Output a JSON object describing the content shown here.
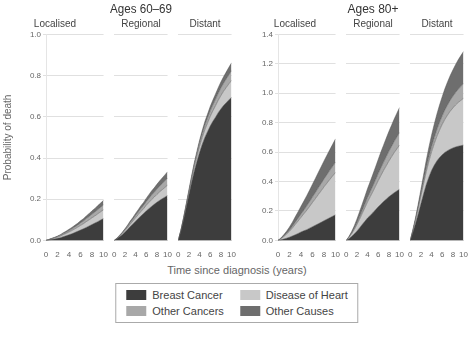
{
  "chart_data": [
    {
      "type": "area",
      "stacked": true,
      "subtitle": "Localised",
      "ylabel": "Probability of death",
      "xlabel": "Time since diagnosis (years)",
      "legend": "bottom",
      "x": [
        0,
        0.5,
        1,
        1.5,
        2,
        2.5,
        3,
        3.5,
        4,
        4.5,
        5,
        5.5,
        6,
        6.5,
        7,
        7.5,
        8,
        8.5,
        9,
        9.5,
        10
      ],
      "xlim": [
        0,
        10
      ],
      "xticks": [
        0,
        2,
        4,
        6,
        8,
        10
      ],
      "ylim": [
        0,
        1.0
      ],
      "yticks": [
        {
          "value": 0,
          "label": "0.0"
        },
        0.2,
        0.4,
        0.6,
        0.8,
        {
          "value": 1.0,
          "label": "1.0"
        }
      ],
      "grid": true,
      "series": [
        {
          "name": "Breast Cancer",
          "color": "#3d3d3d",
          "values": [
            0.0,
            0.002,
            0.005,
            0.007,
            0.01,
            0.013,
            0.018,
            0.022,
            0.027,
            0.032,
            0.038,
            0.044,
            0.05,
            0.056,
            0.063,
            0.07,
            0.077,
            0.084,
            0.091,
            0.099,
            0.106
          ]
        },
        {
          "name": "Disease of Heart",
          "color": "#c8c8c8",
          "values": [
            0.0,
            0.001,
            0.003,
            0.004,
            0.006,
            0.008,
            0.01,
            0.012,
            0.014,
            0.016,
            0.018,
            0.02,
            0.023,
            0.025,
            0.028,
            0.03,
            0.033,
            0.035,
            0.038,
            0.04,
            0.043
          ]
        },
        {
          "name": "Other Cancers",
          "color": "#a8a8a8",
          "values": [
            0.0,
            0.001,
            0.001,
            0.002,
            0.003,
            0.004,
            0.005,
            0.006,
            0.007,
            0.008,
            0.009,
            0.01,
            0.012,
            0.013,
            0.015,
            0.016,
            0.018,
            0.019,
            0.021,
            0.022,
            0.024
          ]
        },
        {
          "name": "Other Causes",
          "color": "#6e6e6e",
          "values": [
            0.0,
            0.001,
            0.001,
            0.002,
            0.002,
            0.003,
            0.004,
            0.005,
            0.006,
            0.007,
            0.008,
            0.009,
            0.01,
            0.011,
            0.013,
            0.014,
            0.016,
            0.017,
            0.019,
            0.02,
            0.022
          ]
        }
      ]
    },
    {
      "type": "area",
      "stacked": true,
      "title": "Ages 60–69",
      "subtitle": "Regional",
      "tick_labels": "x",
      "x": [
        0,
        0.5,
        1,
        1.5,
        2,
        2.5,
        3,
        3.5,
        4,
        4.5,
        5,
        5.5,
        6,
        6.5,
        7,
        7.5,
        8,
        8.5,
        9,
        9.5,
        10
      ],
      "xlim": [
        0,
        10
      ],
      "xticks": [
        0,
        2,
        4,
        6,
        8,
        10
      ],
      "ylim": [
        0,
        1.0
      ],
      "yticks": [
        {
          "value": 0,
          "label": "0.0"
        },
        0.2,
        0.4,
        0.6,
        0.8,
        {
          "value": 1.0,
          "label": "1.0"
        }
      ],
      "grid": true,
      "series": [
        {
          "name": "Breast Cancer",
          "color": "#3d3d3d",
          "values": [
            0.0,
            0.008,
            0.018,
            0.028,
            0.04,
            0.053,
            0.067,
            0.08,
            0.093,
            0.106,
            0.118,
            0.13,
            0.143,
            0.154,
            0.165,
            0.175,
            0.185,
            0.194,
            0.202,
            0.21,
            0.218
          ]
        },
        {
          "name": "Disease of Heart",
          "color": "#c8c8c8",
          "values": [
            0.0,
            0.001,
            0.003,
            0.005,
            0.007,
            0.009,
            0.012,
            0.014,
            0.017,
            0.019,
            0.022,
            0.024,
            0.027,
            0.03,
            0.033,
            0.035,
            0.038,
            0.041,
            0.044,
            0.047,
            0.05
          ]
        },
        {
          "name": "Other Cancers",
          "color": "#a8a8a8",
          "values": [
            0.0,
            0.001,
            0.002,
            0.003,
            0.005,
            0.006,
            0.008,
            0.009,
            0.011,
            0.013,
            0.015,
            0.016,
            0.018,
            0.02,
            0.022,
            0.024,
            0.026,
            0.028,
            0.03,
            0.032,
            0.034
          ]
        },
        {
          "name": "Other Causes",
          "color": "#6e6e6e",
          "values": [
            0.0,
            0.001,
            0.002,
            0.003,
            0.004,
            0.006,
            0.007,
            0.008,
            0.01,
            0.011,
            0.013,
            0.014,
            0.016,
            0.018,
            0.02,
            0.021,
            0.023,
            0.025,
            0.027,
            0.029,
            0.031
          ]
        }
      ]
    },
    {
      "type": "area",
      "stacked": true,
      "subtitle": "Distant",
      "tick_labels": "x",
      "x": [
        0,
        0.5,
        1,
        1.5,
        2,
        2.5,
        3,
        3.5,
        4,
        4.5,
        5,
        5.5,
        6,
        6.5,
        7,
        7.5,
        8,
        8.5,
        9,
        9.5,
        10
      ],
      "xlim": [
        0,
        10
      ],
      "xticks": [
        0,
        2,
        4,
        6,
        8,
        10
      ],
      "ylim": [
        0,
        1.0
      ],
      "yticks": [
        {
          "value": 0,
          "label": "0.0"
        },
        0.2,
        0.4,
        0.6,
        0.8,
        {
          "value": 1.0,
          "label": "1.0"
        }
      ],
      "grid": true,
      "series": [
        {
          "name": "Breast Cancer",
          "color": "#3d3d3d",
          "values": [
            0.0,
            0.045,
            0.1,
            0.16,
            0.22,
            0.28,
            0.335,
            0.383,
            0.427,
            0.466,
            0.5,
            0.528,
            0.555,
            0.578,
            0.598,
            0.62,
            0.638,
            0.655,
            0.668,
            0.682,
            0.695
          ]
        },
        {
          "name": "Disease of Heart",
          "color": "#c8c8c8",
          "values": [
            0.0,
            0.002,
            0.005,
            0.008,
            0.012,
            0.016,
            0.02,
            0.024,
            0.029,
            0.033,
            0.038,
            0.042,
            0.047,
            0.051,
            0.056,
            0.06,
            0.065,
            0.069,
            0.074,
            0.078,
            0.082
          ]
        },
        {
          "name": "Other Cancers",
          "color": "#a8a8a8",
          "values": [
            0.0,
            0.001,
            0.003,
            0.005,
            0.007,
            0.009,
            0.012,
            0.014,
            0.017,
            0.019,
            0.022,
            0.024,
            0.027,
            0.029,
            0.032,
            0.034,
            0.037,
            0.039,
            0.042,
            0.044,
            0.047
          ]
        },
        {
          "name": "Other Causes",
          "color": "#6e6e6e",
          "values": [
            0.0,
            0.001,
            0.002,
            0.004,
            0.005,
            0.007,
            0.009,
            0.011,
            0.013,
            0.015,
            0.017,
            0.019,
            0.021,
            0.023,
            0.025,
            0.027,
            0.029,
            0.031,
            0.033,
            0.036,
            0.038
          ]
        }
      ]
    },
    {
      "type": "area",
      "stacked": true,
      "subtitle": "Localised",
      "x": [
        0,
        0.5,
        1,
        1.5,
        2,
        2.5,
        3,
        3.5,
        4,
        4.5,
        5,
        5.5,
        6,
        6.5,
        7,
        7.5,
        8,
        8.5,
        9,
        9.5,
        10
      ],
      "xlim": [
        0,
        10
      ],
      "xticks": [
        0,
        2,
        4,
        6,
        8,
        10
      ],
      "ylim": [
        0,
        1.4
      ],
      "yticks": [
        {
          "value": 0,
          "label": "0.0"
        },
        0.2,
        0.4,
        0.6,
        0.8,
        {
          "value": 1.0,
          "label": "1.0"
        },
        1.2,
        1.4
      ],
      "grid": true,
      "series": [
        {
          "name": "Breast Cancer",
          "color": "#3d3d3d",
          "values": [
            0.0,
            0.004,
            0.009,
            0.015,
            0.022,
            0.03,
            0.038,
            0.047,
            0.057,
            0.065,
            0.073,
            0.083,
            0.093,
            0.103,
            0.113,
            0.123,
            0.134,
            0.144,
            0.154,
            0.164,
            0.174
          ]
        },
        {
          "name": "Disease of Heart",
          "color": "#c8c8c8",
          "values": [
            0.0,
            0.007,
            0.017,
            0.028,
            0.04,
            0.054,
            0.07,
            0.085,
            0.1,
            0.116,
            0.132,
            0.148,
            0.165,
            0.181,
            0.198,
            0.214,
            0.23,
            0.245,
            0.26,
            0.274,
            0.288
          ]
        },
        {
          "name": "Other Cancers",
          "color": "#a8a8a8",
          "values": [
            0.0,
            0.002,
            0.004,
            0.006,
            0.009,
            0.012,
            0.016,
            0.019,
            0.023,
            0.026,
            0.03,
            0.034,
            0.038,
            0.042,
            0.046,
            0.05,
            0.054,
            0.058,
            0.062,
            0.066,
            0.07
          ]
        },
        {
          "name": "Other Causes",
          "color": "#6e6e6e",
          "values": [
            0.0,
            0.003,
            0.008,
            0.014,
            0.02,
            0.027,
            0.036,
            0.044,
            0.052,
            0.06,
            0.069,
            0.077,
            0.086,
            0.095,
            0.104,
            0.113,
            0.122,
            0.131,
            0.14,
            0.149,
            0.158
          ]
        }
      ]
    },
    {
      "type": "area",
      "stacked": true,
      "title": "Ages 80+",
      "subtitle": "Regional",
      "tick_labels": "x",
      "x": [
        0,
        0.5,
        1,
        1.5,
        2,
        2.5,
        3,
        3.5,
        4,
        4.5,
        5,
        5.5,
        6,
        6.5,
        7,
        7.5,
        8,
        8.5,
        9,
        9.5,
        10
      ],
      "xlim": [
        0,
        10
      ],
      "xticks": [
        0,
        2,
        4,
        6,
        8,
        10
      ],
      "ylim": [
        0,
        1.4
      ],
      "yticks": [
        {
          "value": 0,
          "label": "0.0"
        },
        0.2,
        0.4,
        0.6,
        0.8,
        {
          "value": 1.0,
          "label": "1.0"
        },
        1.2,
        1.4
      ],
      "grid": true,
      "series": [
        {
          "name": "Breast Cancer",
          "color": "#3d3d3d",
          "values": [
            0.0,
            0.012,
            0.026,
            0.043,
            0.063,
            0.085,
            0.108,
            0.13,
            0.152,
            0.17,
            0.188,
            0.208,
            0.228,
            0.246,
            0.264,
            0.28,
            0.296,
            0.31,
            0.324,
            0.336,
            0.348
          ]
        },
        {
          "name": "Disease of Heart",
          "color": "#c8c8c8",
          "values": [
            0.0,
            0.008,
            0.018,
            0.03,
            0.044,
            0.059,
            0.075,
            0.092,
            0.11,
            0.127,
            0.144,
            0.161,
            0.178,
            0.195,
            0.211,
            0.227,
            0.243,
            0.258,
            0.273,
            0.286,
            0.3
          ]
        },
        {
          "name": "Other Cancers",
          "color": "#a8a8a8",
          "values": [
            0.0,
            0.002,
            0.005,
            0.008,
            0.012,
            0.016,
            0.021,
            0.025,
            0.03,
            0.034,
            0.039,
            0.043,
            0.048,
            0.053,
            0.057,
            0.062,
            0.067,
            0.071,
            0.076,
            0.081,
            0.085
          ]
        },
        {
          "name": "Other Causes",
          "color": "#6e6e6e",
          "values": [
            0.0,
            0.004,
            0.01,
            0.017,
            0.025,
            0.034,
            0.042,
            0.051,
            0.06,
            0.069,
            0.078,
            0.087,
            0.096,
            0.106,
            0.115,
            0.125,
            0.134,
            0.143,
            0.152,
            0.161,
            0.17
          ]
        }
      ]
    },
    {
      "type": "area",
      "stacked": true,
      "subtitle": "Distant",
      "tick_labels": "x",
      "x": [
        0,
        0.5,
        1,
        1.5,
        2,
        2.5,
        3,
        3.5,
        4,
        4.5,
        5,
        5.5,
        6,
        6.5,
        7,
        7.5,
        8,
        8.5,
        9,
        9.5,
        10
      ],
      "xlim": [
        0,
        10
      ],
      "xticks": [
        0,
        2,
        4,
        6,
        8,
        10
      ],
      "ylim": [
        0,
        1.4
      ],
      "yticks": [
        {
          "value": 0,
          "label": "0.0"
        },
        0.2,
        0.4,
        0.6,
        0.8,
        {
          "value": 1.0,
          "label": "1.0"
        },
        1.2,
        1.4
      ],
      "grid": true,
      "series": [
        {
          "name": "Breast Cancer",
          "color": "#3d3d3d",
          "values": [
            0.0,
            0.055,
            0.115,
            0.18,
            0.248,
            0.315,
            0.378,
            0.43,
            0.475,
            0.51,
            0.54,
            0.563,
            0.582,
            0.598,
            0.61,
            0.62,
            0.628,
            0.635,
            0.64,
            0.644,
            0.648
          ]
        },
        {
          "name": "Disease of Heart",
          "color": "#c8c8c8",
          "values": [
            0.0,
            0.01,
            0.022,
            0.036,
            0.052,
            0.069,
            0.088,
            0.107,
            0.127,
            0.147,
            0.167,
            0.187,
            0.207,
            0.225,
            0.242,
            0.258,
            0.272,
            0.285,
            0.297,
            0.308,
            0.318
          ]
        },
        {
          "name": "Other Cancers",
          "color": "#a8a8a8",
          "values": [
            0.0,
            0.003,
            0.006,
            0.01,
            0.014,
            0.019,
            0.024,
            0.03,
            0.035,
            0.041,
            0.047,
            0.053,
            0.058,
            0.064,
            0.069,
            0.075,
            0.08,
            0.085,
            0.09,
            0.095,
            0.1
          ]
        },
        {
          "name": "Other Causes",
          "color": "#6e6e6e",
          "values": [
            0.0,
            0.005,
            0.012,
            0.021,
            0.03,
            0.041,
            0.053,
            0.065,
            0.078,
            0.091,
            0.104,
            0.117,
            0.13,
            0.143,
            0.156,
            0.167,
            0.178,
            0.189,
            0.2,
            0.209,
            0.218
          ]
        }
      ]
    }
  ]
}
